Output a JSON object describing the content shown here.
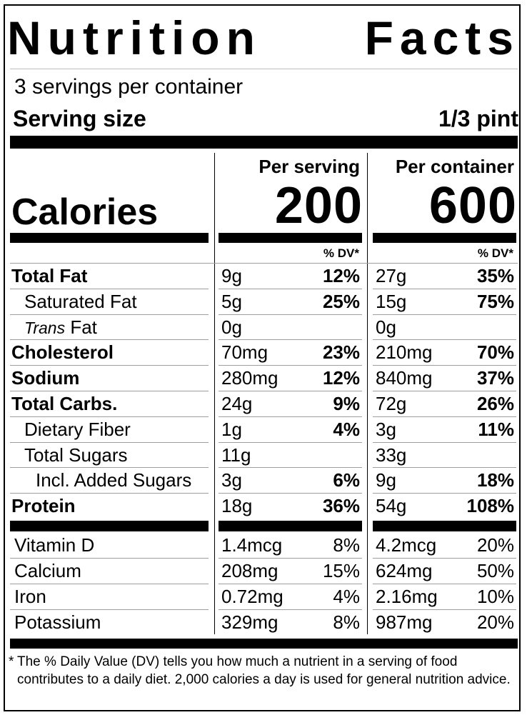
{
  "title": {
    "word1": "Nutrition",
    "word2": "Facts"
  },
  "servings_per_container": "3 servings per container",
  "serving_size": {
    "label": "Serving size",
    "value": "1/3 pint"
  },
  "columns": {
    "per_serving": "Per serving",
    "per_container": "Per container"
  },
  "calories": {
    "label": "Calories",
    "per_serving": "200",
    "per_container": "600"
  },
  "dv_header": "% DV*",
  "nutrients": [
    {
      "name": "Total Fat",
      "bold": true,
      "indent": 0,
      "serv_amt": "9g",
      "serv_dv": "12%",
      "cont_amt": "27g",
      "cont_dv": "35%"
    },
    {
      "name": "Saturated Fat",
      "bold": false,
      "indent": 1,
      "serv_amt": "5g",
      "serv_dv": "25%",
      "cont_amt": "15g",
      "cont_dv": "75%"
    },
    {
      "name_italic": "Trans",
      "name": "Fat",
      "bold": false,
      "indent": 1,
      "serv_amt": "0g",
      "serv_dv": "",
      "cont_amt": "0g",
      "cont_dv": ""
    },
    {
      "name": "Cholesterol",
      "bold": true,
      "indent": 0,
      "serv_amt": "70mg",
      "serv_dv": "23%",
      "cont_amt": "210mg",
      "cont_dv": "70%"
    },
    {
      "name": "Sodium",
      "bold": true,
      "indent": 0,
      "serv_amt": "280mg",
      "serv_dv": "12%",
      "cont_amt": "840mg",
      "cont_dv": "37%"
    },
    {
      "name": "Total Carbs.",
      "bold": true,
      "indent": 0,
      "serv_amt": "24g",
      "serv_dv": "9%",
      "cont_amt": "72g",
      "cont_dv": "26%"
    },
    {
      "name": "Dietary Fiber",
      "bold": false,
      "indent": 1,
      "serv_amt": "1g",
      "serv_dv": "4%",
      "cont_amt": "3g",
      "cont_dv": "11%"
    },
    {
      "name": "Total Sugars",
      "bold": false,
      "indent": 1,
      "serv_amt": "11g",
      "serv_dv": "",
      "cont_amt": "33g",
      "cont_dv": ""
    },
    {
      "name": "Incl. Added Sugars",
      "bold": false,
      "indent": 2,
      "serv_amt": "3g",
      "serv_dv": "6%",
      "cont_amt": "9g",
      "cont_dv": "18%"
    },
    {
      "name": "Protein",
      "bold": true,
      "indent": 0,
      "serv_amt": "18g",
      "serv_dv": "36%",
      "cont_amt": "54g",
      "cont_dv": "108%"
    }
  ],
  "vitamins": [
    {
      "name": "Vitamin D",
      "serv_amt": "1.4mcg",
      "serv_dv": "8%",
      "cont_amt": "4.2mcg",
      "cont_dv": "20%"
    },
    {
      "name": "Calcium",
      "serv_amt": "208mg",
      "serv_dv": "15%",
      "cont_amt": "624mg",
      "cont_dv": "50%"
    },
    {
      "name": "Iron",
      "serv_amt": "0.72mg",
      "serv_dv": "4%",
      "cont_amt": "2.16mg",
      "cont_dv": "10%"
    },
    {
      "name": "Potassium",
      "serv_amt": "329mg",
      "serv_dv": "8%",
      "cont_amt": "987mg",
      "cont_dv": "20%"
    }
  ],
  "footnote": {
    "star": "*",
    "text": "The % Daily Value (DV) tells you how much a nutrient in a serving of food contributes to a daily diet. 2,000 calories a day is used for general nutrition advice."
  }
}
